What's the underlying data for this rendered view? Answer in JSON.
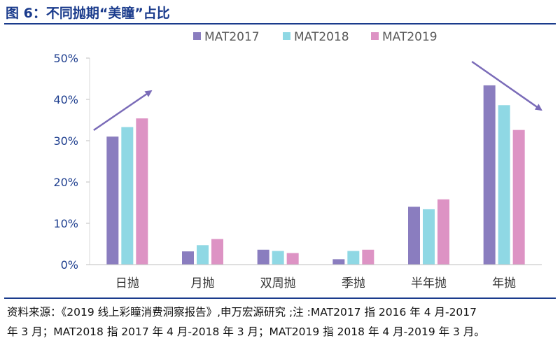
{
  "figure": {
    "title": "图 6：不同抛期“美瞳”占比"
  },
  "source": {
    "line1": "资料来源：《2019 线上彩瞳消费洞察报告》,申万宏源研究 ;注 :MAT2017 指 2016 年 4 月-2017",
    "line2": "年 3 月；MAT2018 指 2017 年 4 月-2018 年 3 月；MAT2019 指 2018 年 4 月-2019 年 3 月。"
  },
  "chart_data": {
    "type": "bar",
    "title": "",
    "xlabel": "",
    "ylabel": "",
    "categories": [
      "日抛",
      "月抛",
      "双周抛",
      "季抛",
      "半年抛",
      "年抛"
    ],
    "series": [
      {
        "name": "MAT2017",
        "color": "#8a7dbf",
        "values": [
          31.0,
          3.2,
          3.6,
          1.3,
          14.0,
          43.4
        ]
      },
      {
        "name": "MAT2018",
        "color": "#8fd8e4",
        "values": [
          33.3,
          4.7,
          3.3,
          3.3,
          13.4,
          38.6
        ]
      },
      {
        "name": "MAT2019",
        "color": "#dd93c4",
        "values": [
          35.4,
          6.2,
          2.8,
          3.6,
          15.8,
          32.6
        ]
      }
    ],
    "ylim": [
      0,
      50
    ],
    "yticks": [
      0,
      10,
      20,
      30,
      40,
      50
    ],
    "ytick_labels": [
      "0%",
      "10%",
      "20%",
      "30%",
      "40%",
      "50%"
    ],
    "grid": false,
    "legend_position": "top",
    "annotations": [
      {
        "kind": "arrow",
        "direction": "up",
        "category": "日抛",
        "color": "#7a6bb8"
      },
      {
        "kind": "arrow",
        "direction": "down",
        "category": "年抛",
        "color": "#7a6bb8"
      }
    ]
  }
}
